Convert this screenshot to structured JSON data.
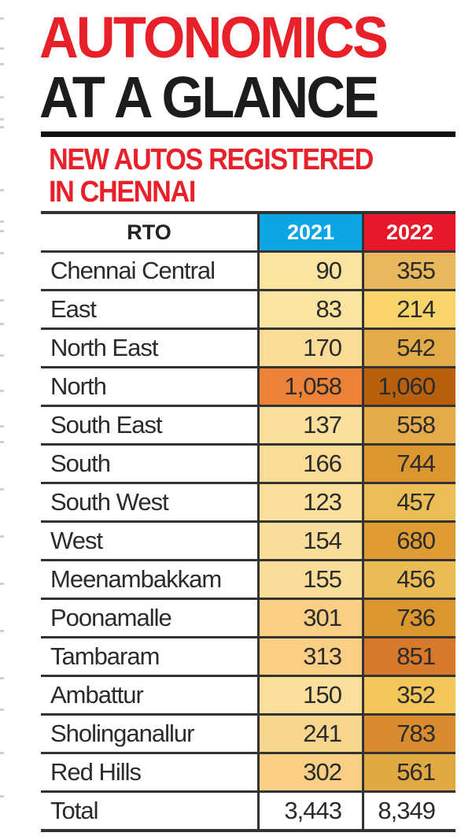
{
  "header": {
    "title_line1": "AUTONOMICS",
    "title_line2": "AT A GLANCE",
    "subtitle_line1": "NEW AUTOS REGISTERED",
    "subtitle_line2": "IN CHENNAI"
  },
  "colors": {
    "title_red": "#e8202a",
    "title_black": "#1c1c1c",
    "header_2021": "#0ea5e4",
    "header_2022": "#e5192a"
  },
  "table": {
    "columns": [
      "RTO",
      "2021",
      "2022"
    ],
    "rows": [
      {
        "rto": "Chennai Central",
        "y2021": "90",
        "y2022": "355",
        "c2021": "#fbe3a0",
        "c2022": "#eab85c"
      },
      {
        "rto": "East",
        "y2021": "83",
        "y2022": "214",
        "c2021": "#fbe3a0",
        "c2022": "#f8d46a"
      },
      {
        "rto": "North East",
        "y2021": "170",
        "y2022": "542",
        "c2021": "#fadc96",
        "c2022": "#e4ac48"
      },
      {
        "rto": "North",
        "y2021": "1,058",
        "y2022": "1,060",
        "c2021": "#ec8236",
        "c2022": "#b8600c"
      },
      {
        "rto": "South East",
        "y2021": "137",
        "y2022": "558",
        "c2021": "#fbe09c",
        "c2022": "#e4ab48"
      },
      {
        "rto": "South",
        "y2021": "166",
        "y2022": "744",
        "c2021": "#fadc96",
        "c2022": "#dc9630"
      },
      {
        "rto": "South West",
        "y2021": "123",
        "y2022": "457",
        "c2021": "#fbe09c",
        "c2022": "#ebbd55"
      },
      {
        "rto": "West",
        "y2021": "154",
        "y2022": "680",
        "c2021": "#fadd98",
        "c2022": "#df9c34"
      },
      {
        "rto": "Meenambakkam",
        "y2021": "155",
        "y2022": "456",
        "c2021": "#fadd98",
        "c2022": "#ecbc54"
      },
      {
        "rto": "Poonamalle",
        "y2021": "301",
        "y2022": "736",
        "c2021": "#f8cf84",
        "c2022": "#dc9630"
      },
      {
        "rto": "Tambaram",
        "y2021": "313",
        "y2022": "851",
        "c2021": "#f8cf84",
        "c2022": "#d8782a"
      },
      {
        "rto": "Ambattur",
        "y2021": "150",
        "y2022": "352",
        "c2021": "#fbdf9a",
        "c2022": "#f3c65c"
      },
      {
        "rto": "Sholinganallur",
        "y2021": "241",
        "y2022": "783",
        "c2021": "#f9d68e",
        "c2022": "#d98c2e"
      },
      {
        "rto": "Red Hills",
        "y2021": "302",
        "y2022": "561",
        "c2021": "#f8cf84",
        "c2022": "#e2a842"
      }
    ],
    "total": {
      "rto": "Total",
      "y2021": "3,443",
      "y2022": "8,349"
    }
  },
  "chart_data": {
    "type": "table",
    "title": "AUTONOMICS AT A GLANCE",
    "subtitle": "NEW AUTOS REGISTERED IN CHENNAI",
    "columns": [
      "RTO",
      "2021",
      "2022"
    ],
    "categories": [
      "Chennai Central",
      "East",
      "North East",
      "North",
      "South East",
      "South",
      "South West",
      "West",
      "Meenambakkam",
      "Poonamalle",
      "Tambaram",
      "Ambattur",
      "Sholinganallur",
      "Red Hills"
    ],
    "series": [
      {
        "name": "2021",
        "values": [
          90,
          83,
          170,
          1058,
          137,
          166,
          123,
          154,
          155,
          301,
          313,
          150,
          241,
          302
        ]
      },
      {
        "name": "2022",
        "values": [
          355,
          214,
          542,
          1060,
          558,
          744,
          457,
          680,
          456,
          736,
          851,
          352,
          783,
          561
        ]
      }
    ],
    "totals": {
      "2021": 3443,
      "2022": 8349
    },
    "encoding": "heatmap-style cell shading (light yellow = low, dark orange/brown = high)"
  }
}
